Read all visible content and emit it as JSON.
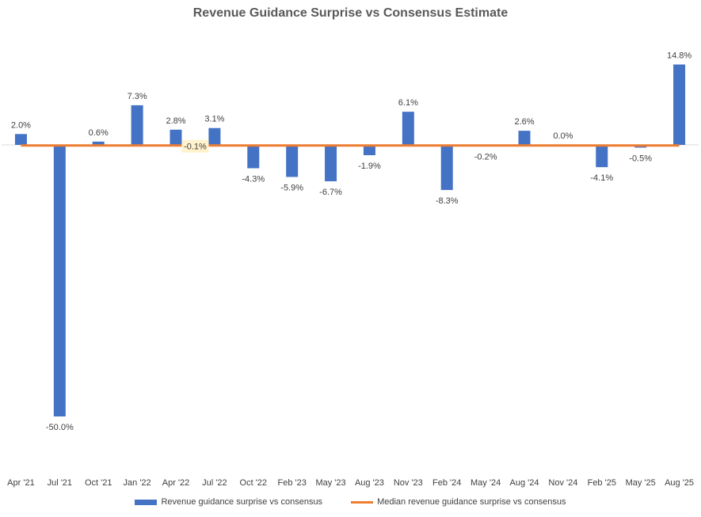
{
  "colors": {
    "bar": "#4472C4",
    "median_line": "#ED7D31",
    "text": "#404040",
    "title": "#595959",
    "axis": "#D9D9D9",
    "highlight_label_bg": "#FFF2CC"
  },
  "chart_data": {
    "type": "bar",
    "title": "Revenue Guidance Surprise vs Consensus Estimate",
    "xlabel": "",
    "ylabel": "",
    "categories": [
      "Apr '21",
      "Jul '21",
      "Oct '21",
      "Jan '22",
      "Apr '22",
      "Jul '22",
      "Oct '22",
      "Feb '23",
      "May '23",
      "Aug '23",
      "Nov '23",
      "Feb '24",
      "May '24",
      "Aug '24",
      "Nov '24",
      "Feb '25",
      "May '25",
      "Aug '25"
    ],
    "series": [
      {
        "name": "Revenue guidance surprise vs consensus",
        "kind": "bar",
        "values": [
          2.0,
          -50.0,
          0.6,
          7.3,
          2.8,
          3.1,
          -4.3,
          -5.9,
          -6.7,
          -1.9,
          6.1,
          -8.3,
          -0.2,
          2.6,
          0.0,
          -4.1,
          -0.5,
          14.8
        ],
        "labels": [
          "2.0%",
          "-50.0%",
          "0.6%",
          "7.3%",
          "2.8%",
          "3.1%",
          "-4.3%",
          "-5.9%",
          "-6.7%",
          "-1.9%",
          "6.1%",
          "-8.3%",
          "-0.2%",
          "2.6%",
          "0.0%",
          "-4.1%",
          "-0.5%",
          "14.8%"
        ]
      },
      {
        "name": "Median revenue guidance surprise vs consensus",
        "kind": "line",
        "values": [
          -0.1,
          -0.1,
          -0.1,
          -0.1,
          -0.1,
          -0.1,
          -0.1,
          -0.1,
          -0.1,
          -0.1,
          -0.1,
          -0.1,
          -0.1,
          -0.1,
          -0.1,
          -0.1,
          -0.1,
          -0.1
        ],
        "label": "-0.1%"
      }
    ],
    "ylim": [
      -60,
      20
    ],
    "grid": false,
    "legend": "bottom"
  }
}
